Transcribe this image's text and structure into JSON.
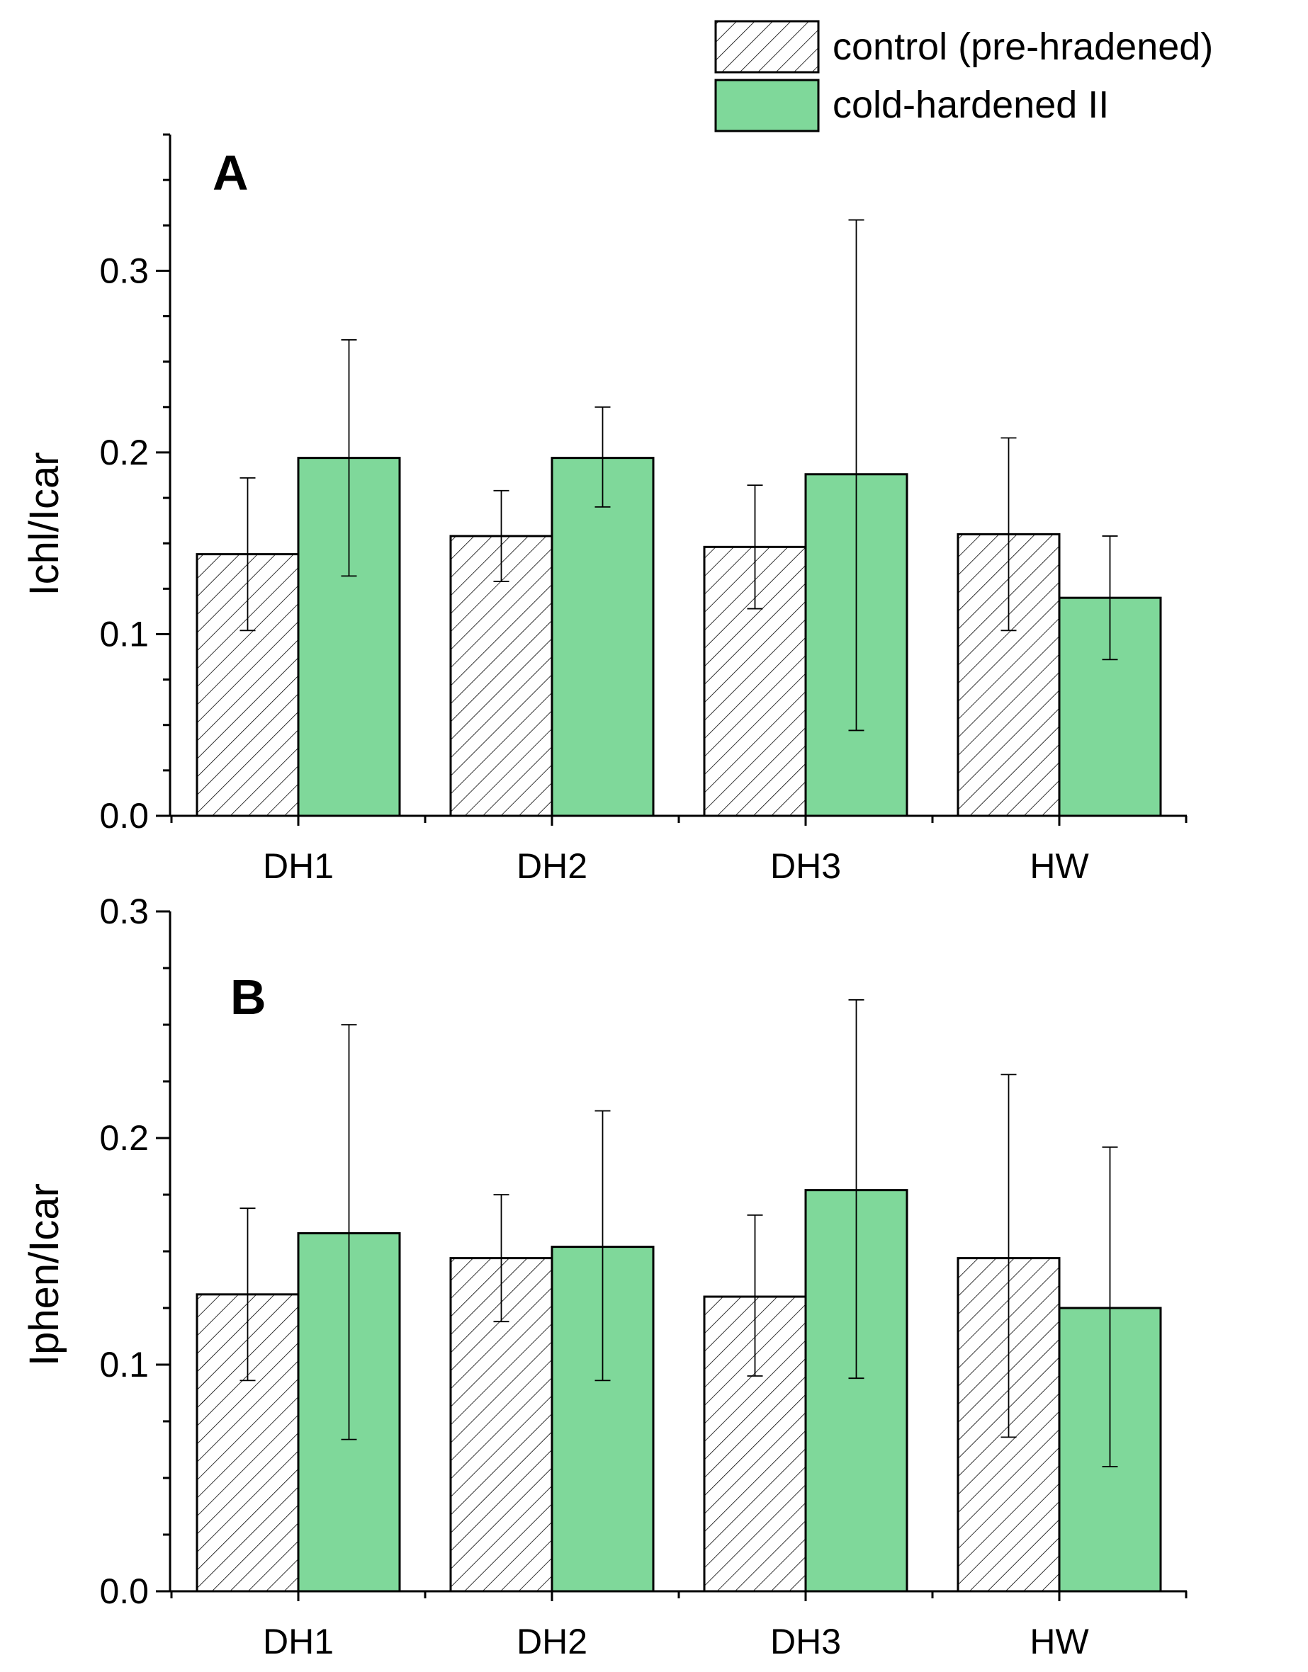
{
  "legend": [
    {
      "key": "control",
      "label": "control (pre-hradened)",
      "fill": "hatch"
    },
    {
      "key": "cold",
      "label": "cold-hardened II",
      "fill": "#7fd89a"
    }
  ],
  "colors": {
    "cold": "#7fd89a",
    "axis": "#000000",
    "hatch_stroke": "#000000"
  },
  "chart_data": [
    {
      "type": "bar",
      "panel": "A",
      "title": "",
      "xlabel": "",
      "ylabel": "Ichl/Icar",
      "ylim": [
        0,
        0.375
      ],
      "yticks": [
        0.0,
        0.1,
        0.2,
        0.3
      ],
      "ytick_labels": [
        "0.0",
        "0.1",
        "0.2",
        "0.3"
      ],
      "categories": [
        "DH1",
        "DH2",
        "DH3",
        "HW"
      ],
      "series": [
        {
          "name": "control (pre-hradened)",
          "key": "control",
          "values": [
            0.144,
            0.154,
            0.148,
            0.155
          ],
          "err_low": [
            0.102,
            0.129,
            0.114,
            0.102
          ],
          "err_high": [
            0.186,
            0.179,
            0.182,
            0.208
          ]
        },
        {
          "name": "cold-hardened II",
          "key": "cold",
          "values": [
            0.197,
            0.197,
            0.188,
            0.12
          ],
          "err_low": [
            0.132,
            0.17,
            0.047,
            0.086
          ],
          "err_high": [
            0.262,
            0.225,
            0.328,
            0.154
          ]
        }
      ]
    },
    {
      "type": "bar",
      "panel": "B",
      "title": "",
      "xlabel": "",
      "ylabel": "Iphen/Icar",
      "ylim": [
        0,
        0.3
      ],
      "yticks": [
        0.0,
        0.1,
        0.2,
        0.3
      ],
      "ytick_labels": [
        "0.0",
        "0.1",
        "0.2",
        "0.3"
      ],
      "categories": [
        "DH1",
        "DH2",
        "DH3",
        "HW"
      ],
      "series": [
        {
          "name": "control (pre-hradened)",
          "key": "control",
          "values": [
            0.131,
            0.147,
            0.13,
            0.147
          ],
          "err_low": [
            0.093,
            0.119,
            0.095,
            0.068
          ],
          "err_high": [
            0.169,
            0.175,
            0.166,
            0.228
          ]
        },
        {
          "name": "cold-hardened II",
          "key": "cold",
          "values": [
            0.158,
            0.152,
            0.177,
            0.125
          ],
          "err_low": [
            0.067,
            0.093,
            0.094,
            0.055
          ],
          "err_high": [
            0.25,
            0.212,
            0.261,
            0.196
          ]
        }
      ]
    }
  ]
}
